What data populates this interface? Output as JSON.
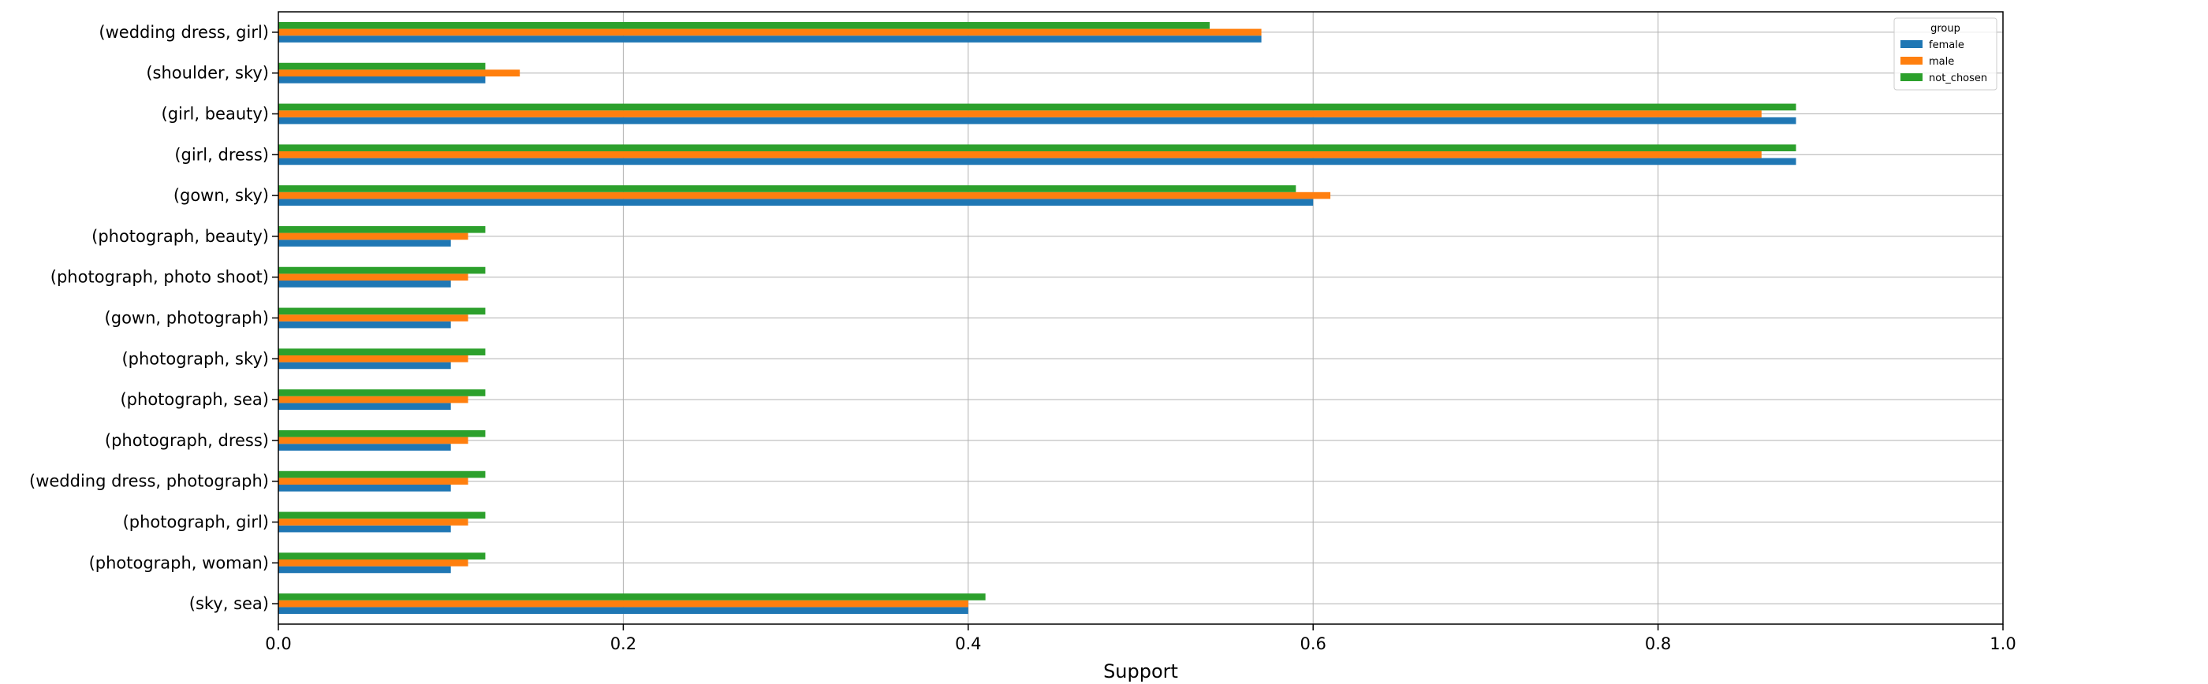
{
  "chart_data": {
    "type": "bar",
    "orientation": "horizontal",
    "categories": [
      "(wedding dress, girl)",
      "(shoulder, sky)",
      "(girl, beauty)",
      "(girl, dress)",
      "(gown, sky)",
      "(photograph, beauty)",
      "(photograph, photo shoot)",
      "(gown, photograph)",
      "(photograph, sky)",
      "(photograph, sea)",
      "(photograph, dress)",
      "(wedding dress, photograph)",
      "(photograph, girl)",
      "(photograph, woman)",
      "(sky, sea)"
    ],
    "series": [
      {
        "name": "female",
        "color": "#1f77b4",
        "values": [
          0.57,
          0.12,
          0.88,
          0.88,
          0.6,
          0.1,
          0.1,
          0.1,
          0.1,
          0.1,
          0.1,
          0.1,
          0.1,
          0.1,
          0.4
        ]
      },
      {
        "name": "male",
        "color": "#ff7f0e",
        "values": [
          0.57,
          0.14,
          0.86,
          0.86,
          0.61,
          0.11,
          0.11,
          0.11,
          0.11,
          0.11,
          0.11,
          0.11,
          0.11,
          0.11,
          0.4
        ]
      },
      {
        "name": "not_chosen",
        "color": "#2ca02c",
        "values": [
          0.54,
          0.12,
          0.88,
          0.88,
          0.59,
          0.12,
          0.12,
          0.12,
          0.12,
          0.12,
          0.12,
          0.12,
          0.12,
          0.12,
          0.41
        ]
      }
    ],
    "title": "",
    "xlabel": "Support",
    "ylabel": "",
    "xlim": [
      0,
      1.0
    ],
    "xticks": [
      "0.0",
      "0.2",
      "0.4",
      "0.6",
      "0.8",
      "1.0"
    ],
    "legend_title": "group",
    "legend_position": "top-right",
    "grid": true
  }
}
